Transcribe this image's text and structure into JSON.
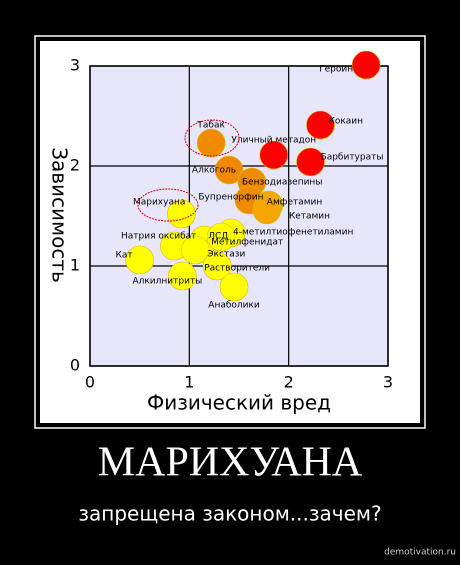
{
  "poster": {
    "title": "МАРИХУАНА",
    "subtitle": "запрещена законом...зачем?",
    "watermark": "demotivation.ru"
  },
  "chart_data": {
    "type": "scatter",
    "x_label": "Физический вред",
    "y_label": "Зависимость",
    "xlim": [
      0,
      3
    ],
    "ylim": [
      0,
      3
    ],
    "xticks": [
      0,
      1,
      2,
      3
    ],
    "yticks": [
      0,
      1,
      2,
      3
    ],
    "grid": true,
    "points": [
      {
        "label": "Героин",
        "x": 2.78,
        "y": 3.01,
        "color": "#ff0000"
      },
      {
        "label": "Кокаин",
        "x": 2.32,
        "y": 2.41,
        "color": "#ff0000"
      },
      {
        "label": "Барбитураты",
        "x": 2.22,
        "y": 2.04,
        "color": "#ff0000"
      },
      {
        "label": "Уличный метадон",
        "x": 1.85,
        "y": 2.11,
        "color": "#ff0000"
      },
      {
        "label": "Табак",
        "x": 1.22,
        "y": 2.23,
        "color": "#f08a00"
      },
      {
        "label": "Алкоголь",
        "x": 1.4,
        "y": 1.96,
        "color": "#f08a00"
      },
      {
        "label": "Бензодиазепины",
        "x": 1.63,
        "y": 1.84,
        "color": "#f08a00"
      },
      {
        "label": "Бупренорфин",
        "x": 1.6,
        "y": 1.66,
        "color": "#f08a00"
      },
      {
        "label": "Амфетамин",
        "x": 1.8,
        "y": 1.61,
        "color": "#f5a500"
      },
      {
        "label": "Кетамин",
        "x": 1.78,
        "y": 1.56,
        "color": "#f5a500"
      },
      {
        "label": "Марихуана",
        "x": 0.92,
        "y": 1.52,
        "color": "#ffff00"
      },
      {
        "label": "4-метилтиофенетиламин",
        "x": 1.42,
        "y": 1.33,
        "color": "#ffff00"
      },
      {
        "label": "Натрия оксибат",
        "x": 0.85,
        "y": 1.2,
        "color": "#ffff00"
      },
      {
        "label": "ЛСД",
        "x": 1.15,
        "y": 1.26,
        "color": "#ffff00"
      },
      {
        "label": "Метилфенидат",
        "x": 1.32,
        "y": 1.29,
        "color": "#ffff00"
      },
      {
        "label": "Экстази",
        "x": 1.06,
        "y": 1.16,
        "color": "#ffff00"
      },
      {
        "label": "Растворители",
        "x": 1.28,
        "y": 1.0,
        "color": "#ffff00"
      },
      {
        "label": "Кат",
        "x": 0.5,
        "y": 1.06,
        "color": "#ffff00"
      },
      {
        "label": "Алкилнитриты",
        "x": 0.93,
        "y": 0.9,
        "color": "#ffff00"
      },
      {
        "label": "Анаболики",
        "x": 1.45,
        "y": 0.79,
        "color": "#ffff00"
      }
    ]
  }
}
